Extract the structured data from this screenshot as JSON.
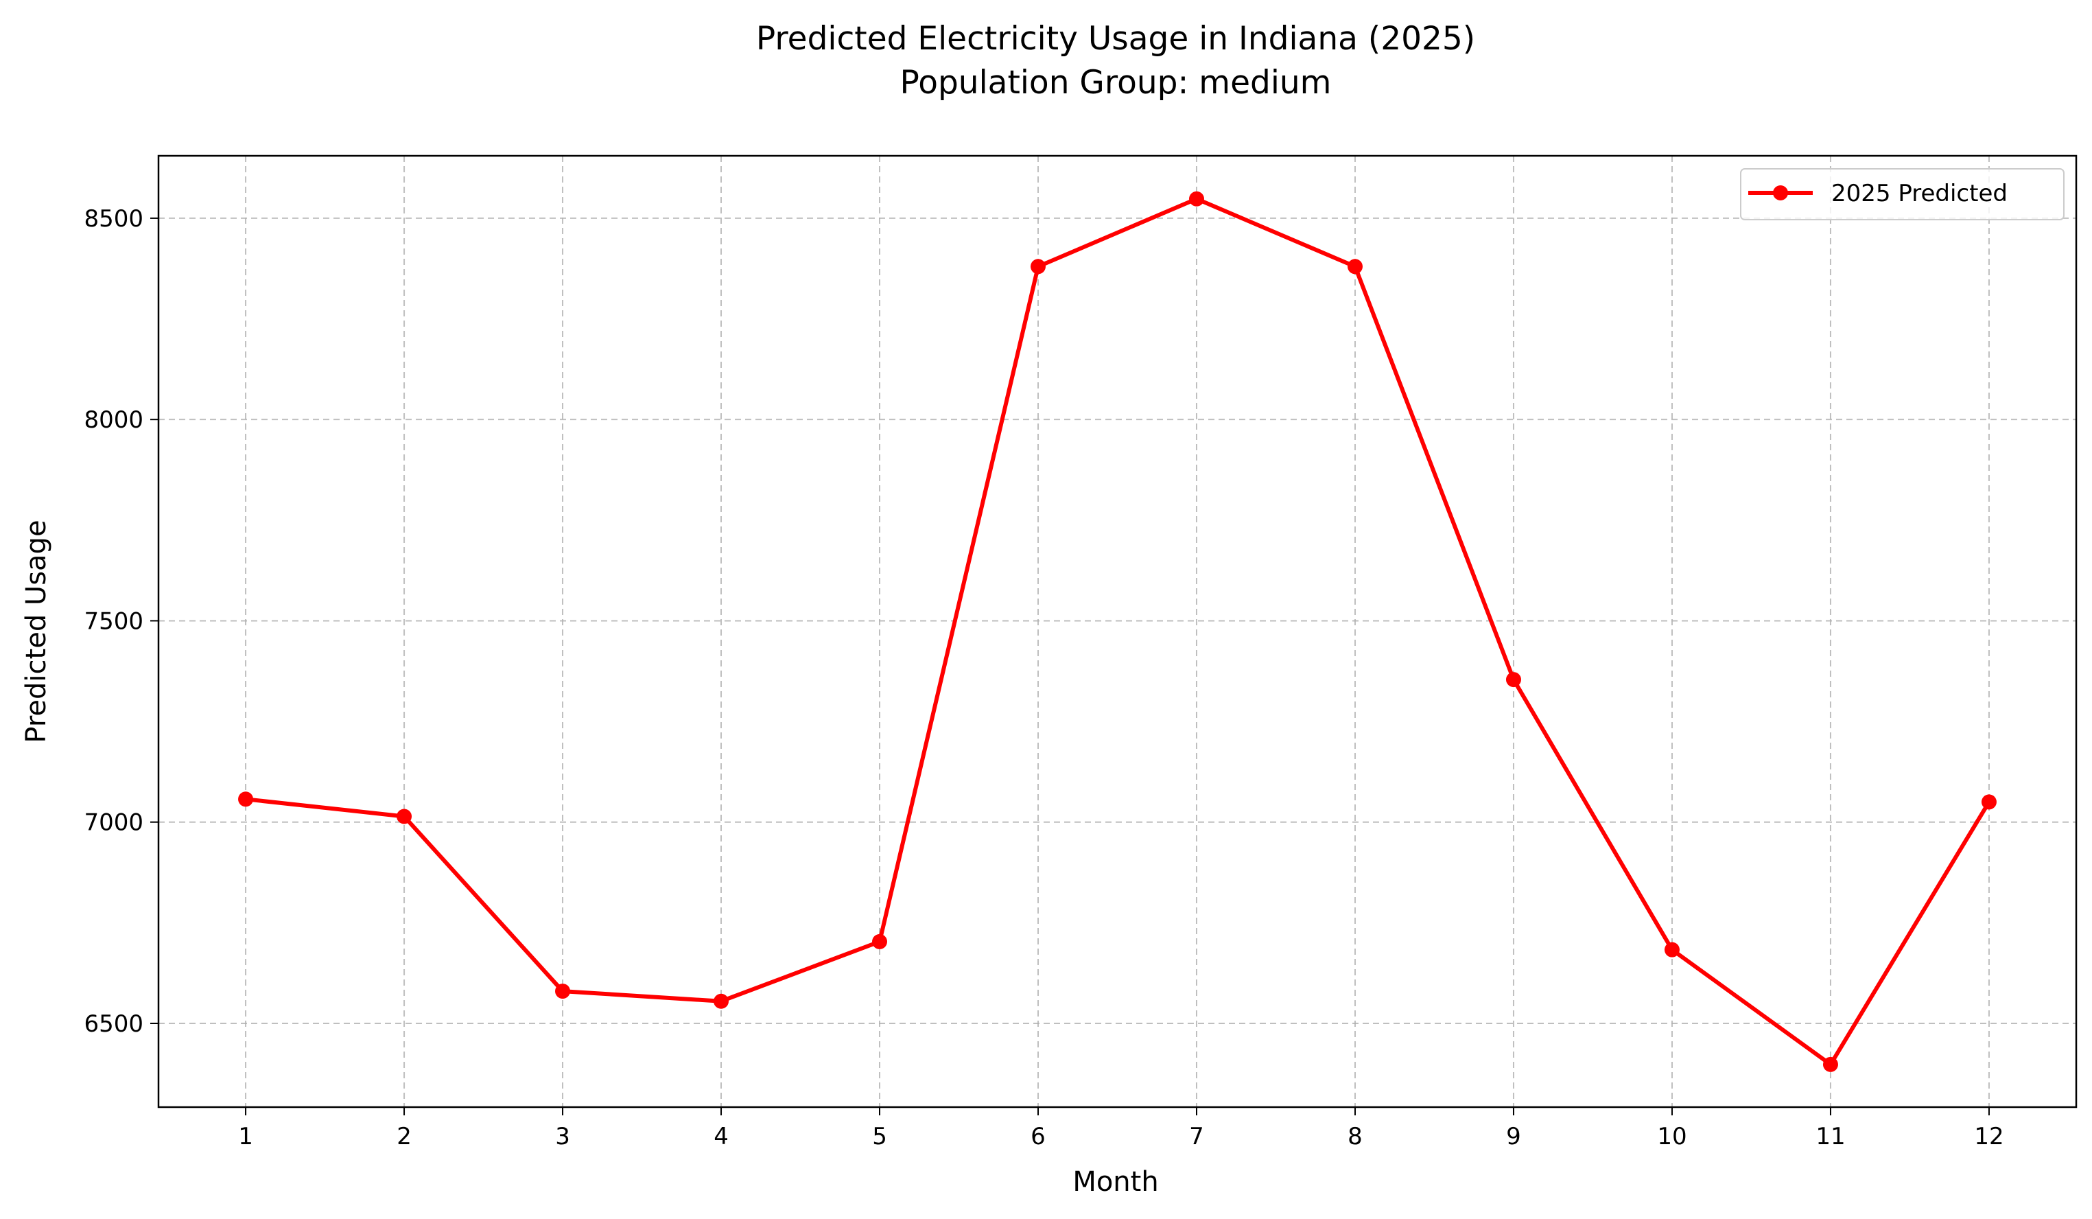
{
  "chart_data": {
    "type": "line",
    "title": "Predicted Electricity Usage in Indiana (2025)",
    "subtitle": "Population Group: medium",
    "xlabel": "Month",
    "ylabel": "Predicted Usage",
    "x": [
      1,
      2,
      3,
      4,
      5,
      6,
      7,
      8,
      9,
      10,
      11,
      12
    ],
    "series": [
      {
        "name": "2025 Predicted",
        "color": "#ff0000",
        "marker": "circle",
        "values": [
          7057,
          7014,
          6580,
          6555,
          6703,
          8380,
          8548,
          8380,
          7354,
          6683,
          6398,
          7050
        ]
      }
    ],
    "xticks": [
      "1",
      "2",
      "3",
      "4",
      "5",
      "6",
      "7",
      "8",
      "9",
      "10",
      "11",
      "12"
    ],
    "yticks": [
      6500,
      7000,
      7500,
      8000,
      8500
    ],
    "xlim": [
      0.45,
      12.55
    ],
    "ylim": [
      6292,
      8655
    ],
    "grid": true,
    "legend_position": "top-right"
  }
}
